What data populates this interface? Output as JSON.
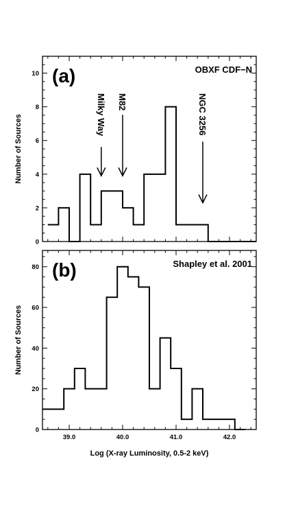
{
  "chart_data": [
    {
      "type": "histogram-step",
      "panel_label": "(a)",
      "title": "OBXF CDF−N",
      "ylabel": "Number of Sources",
      "xlabel": "",
      "xlim": [
        38.5,
        42.5
      ],
      "ylim": [
        0,
        11
      ],
      "x_ticks": [
        39.0,
        40.0,
        41.0,
        42.0
      ],
      "y_ticks": [
        0,
        2,
        4,
        6,
        8,
        10
      ],
      "bin_width": 0.2,
      "bins_left_edges": [
        38.6,
        38.8,
        39.0,
        39.2,
        39.4,
        39.6,
        39.8,
        40.0,
        40.2,
        40.4,
        40.6,
        40.8,
        41.0,
        41.2,
        41.4,
        41.6,
        41.8,
        42.0,
        42.2,
        42.4
      ],
      "values": [
        1,
        2,
        0,
        4,
        1,
        3,
        3,
        2,
        1,
        4,
        4,
        8,
        1,
        1,
        1,
        0,
        0,
        0,
        0,
        0
      ],
      "annotations": [
        {
          "text": "Milky Way",
          "x": 39.6,
          "y": 3.9
        },
        {
          "text": "M82",
          "x": 40.0,
          "y": 3.9
        },
        {
          "text": "NGC 3256",
          "x": 41.5,
          "y": 2.3
        }
      ]
    },
    {
      "type": "histogram-step",
      "panel_label": "(b)",
      "title": "Shapley et al. 2001",
      "ylabel": "Number of Sources",
      "xlabel": "Log (X-ray Luminosity, 0.5-2 keV)",
      "xlim": [
        38.5,
        42.5
      ],
      "ylim": [
        0,
        88
      ],
      "x_ticks": [
        39.0,
        40.0,
        41.0,
        42.0
      ],
      "x_tick_labels": [
        "39.0",
        "40.0",
        "41.0",
        "42.0"
      ],
      "y_ticks": [
        0,
        20,
        40,
        60,
        80
      ],
      "bin_width": 0.2,
      "bins_left_edges": [
        38.5,
        38.9,
        39.1,
        39.3,
        39.7,
        39.9,
        40.1,
        40.3,
        40.5,
        40.7,
        40.9,
        41.1,
        41.3,
        41.5,
        42.1
      ],
      "bins_right_edges": [
        38.9,
        39.1,
        39.3,
        39.7,
        39.9,
        40.1,
        40.3,
        40.5,
        40.7,
        40.9,
        41.1,
        41.3,
        41.5,
        42.1,
        42.3
      ],
      "values": [
        10,
        20,
        30,
        20,
        65,
        80,
        75,
        70,
        20,
        45,
        30,
        5,
        20,
        5,
        0
      ]
    }
  ]
}
